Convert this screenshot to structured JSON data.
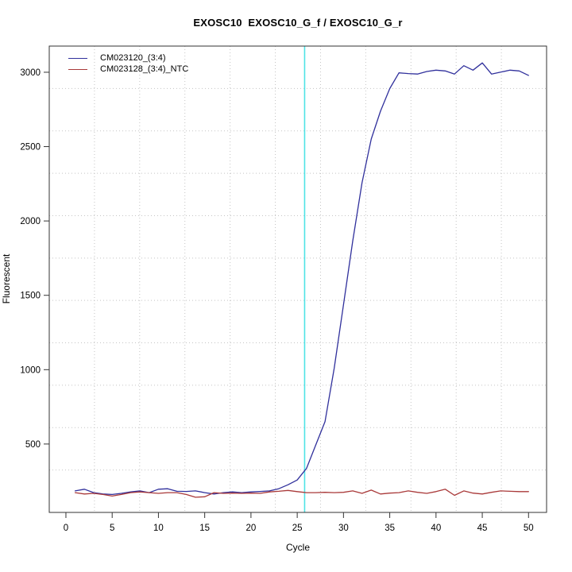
{
  "title": "EXOSC10  EXOSC10_G_f / EXOSC10_G_r",
  "colors": {
    "sample_line": "#30309C",
    "ntc_line": "#A93939",
    "threshold_line": "#4FE3E6",
    "grid": "#C4C4C4",
    "axis_box": "#333333",
    "text": "#000000",
    "background": "#FFFFFF"
  },
  "chart_data": {
    "type": "line",
    "title": "EXOSC10  EXOSC10_G_f / EXOSC10_G_r",
    "xlabel": "Cycle",
    "ylabel": "Fluorescent",
    "x_ticks": [
      0,
      5,
      10,
      15,
      20,
      25,
      30,
      35,
      40,
      45,
      50
    ],
    "y_ticks": [
      500,
      1000,
      1500,
      2000,
      2500,
      3000
    ],
    "xlim": [
      -1.8,
      51.95
    ],
    "ylim": [
      40,
      3176
    ],
    "grid": {
      "nx": 11,
      "ny": 11,
      "style": "dotted"
    },
    "legend_position": "top-left",
    "threshold_line": {
      "x": 25.8,
      "color": "#4FE3E6"
    },
    "series": [
      {
        "name": "CM023120_(3:4)",
        "color": "#30309C",
        "x": [
          1,
          2,
          3,
          4,
          5,
          6,
          7,
          8,
          9,
          10,
          11,
          12,
          13,
          14,
          15,
          16,
          17,
          18,
          19,
          20,
          21,
          22,
          23,
          24,
          25,
          26,
          27,
          28,
          29,
          30,
          31,
          32,
          33,
          34,
          35,
          36,
          37,
          38,
          39,
          40,
          41,
          42,
          43,
          44,
          45,
          46,
          47,
          48,
          49,
          50
        ],
        "values": [
          185,
          196,
          173,
          164,
          161,
          168,
          178,
          185,
          173,
          196,
          199,
          182,
          181,
          185,
          173,
          164,
          173,
          178,
          173,
          178,
          181,
          185,
          199,
          226,
          258,
          336,
          493,
          650,
          1010,
          1438,
          1865,
          2257,
          2551,
          2738,
          2890,
          2996,
          2991,
          2988,
          3005,
          3014,
          3009,
          2988,
          3044,
          3014,
          3063,
          2988,
          3001,
          3014,
          3009,
          2979
        ]
      },
      {
        "name": "CM023128_(3:4)_NTC",
        "color": "#A93939",
        "x": [
          1,
          2,
          3,
          4,
          5,
          6,
          7,
          8,
          9,
          10,
          11,
          12,
          13,
          14,
          15,
          16,
          17,
          18,
          19,
          20,
          21,
          22,
          23,
          24,
          25,
          26,
          27,
          28,
          29,
          30,
          31,
          32,
          33,
          34,
          35,
          36,
          37,
          38,
          39,
          40,
          41,
          42,
          43,
          44,
          45,
          46,
          47,
          48,
          49,
          50
        ],
        "values": [
          173,
          164,
          168,
          161,
          150,
          161,
          173,
          178,
          173,
          168,
          173,
          173,
          161,
          142,
          145,
          173,
          168,
          170,
          168,
          170,
          168,
          178,
          182,
          188,
          180,
          173,
          173,
          175,
          173,
          175,
          185,
          168,
          190,
          164,
          170,
          173,
          185,
          175,
          168,
          180,
          196,
          155,
          185,
          170,
          164,
          175,
          185,
          182,
          180,
          180
        ]
      }
    ]
  }
}
